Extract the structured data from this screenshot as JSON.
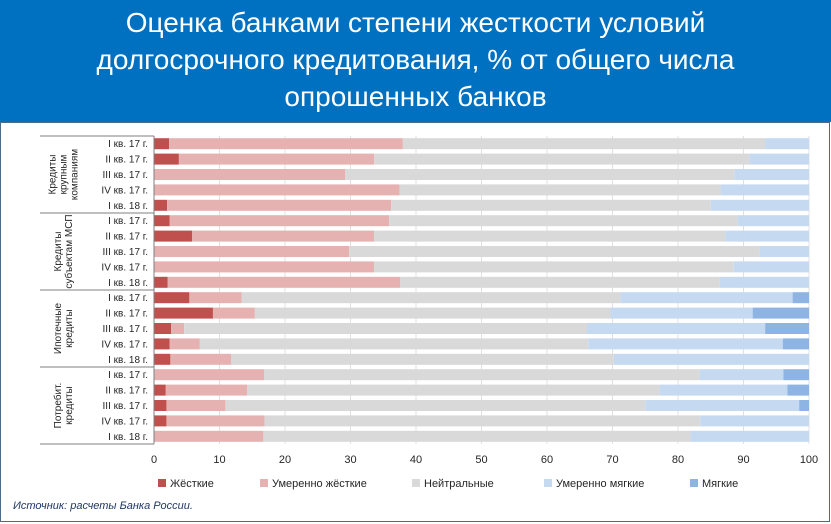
{
  "header": {
    "title_lines": [
      "Оценка банками степени жесткости условий",
      "долгосрочного кредитования, % от общего числа",
      "опрошенных банков"
    ]
  },
  "source": "Источник: расчеты Банка России.",
  "colors": {
    "header_bg": "#0070c0",
    "Жёсткие": "#c0504d",
    "Умеренно жёсткие": "#e6b1b1",
    "Нейтральные": "#d9d9d9",
    "Умеренно мягкие": "#c5d9f1",
    "Мягкие": "#8eb4e3"
  },
  "chart_data": {
    "type": "bar",
    "orientation": "horizontal",
    "stacked": true,
    "xlim": [
      0,
      100
    ],
    "x_ticks": [
      0,
      10,
      20,
      30,
      40,
      50,
      60,
      70,
      80,
      90,
      100
    ],
    "grid": true,
    "legend_position": "bottom",
    "groups": [
      {
        "label": "Кредиты крупным компаниям",
        "categories": [
          "I кв. 17 г.",
          "II кв. 17 г.",
          "III кв. 17 г.",
          "IV кв. 17 г.",
          "I кв. 18 г."
        ]
      },
      {
        "label": "Кредиты субъектам МСП",
        "categories": [
          "I кв. 17 г.",
          "II кв. 17 г.",
          "III кв. 17 г.",
          "IV кв. 17 г.",
          "I кв. 18 г."
        ]
      },
      {
        "label": "Ипотечные кредиты",
        "categories": [
          "I кв. 17 г.",
          "II кв. 17 г.",
          "III кв. 17 г.",
          "IV кв. 17 г.",
          "I кв. 18 г."
        ]
      },
      {
        "label": "Потребит. кредиты",
        "categories": [
          "I кв. 17 г.",
          "II кв. 17 г.",
          "III кв. 17 г.",
          "IV кв. 17 г.",
          "I кв. 18 г."
        ]
      }
    ],
    "series": [
      {
        "name": "Жёсткие",
        "values": [
          2.3,
          3.8,
          0,
          0,
          2.0,
          2.4,
          5.8,
          0,
          0,
          2.1,
          5.4,
          9.0,
          2.6,
          2.4,
          2.5,
          0,
          1.8,
          1.9,
          1.9,
          0
        ]
      },
      {
        "name": "Умеренно жёсткие",
        "values": [
          35.7,
          29.8,
          29.2,
          37.5,
          34.2,
          33.5,
          27.8,
          29.8,
          33.6,
          35.5,
          8.0,
          6.4,
          2.0,
          4.6,
          9.3,
          16.8,
          12.4,
          9.0,
          15.0,
          16.7
        ]
      },
      {
        "name": "Нейтральные",
        "values": [
          55.3,
          57.3,
          59.4,
          49.0,
          48.8,
          53.2,
          53.6,
          62.7,
          54.9,
          48.8,
          57.8,
          54.3,
          61.5,
          59.3,
          58.4,
          66.5,
          63.0,
          64.1,
          66.5,
          65.2
        ]
      },
      {
        "name": "Умеренно мягкие",
        "values": [
          6.7,
          9.1,
          11.4,
          13.5,
          15.0,
          10.9,
          12.8,
          7.5,
          11.5,
          13.6,
          26.3,
          21.7,
          27.2,
          29.7,
          29.8,
          12.8,
          19.5,
          23.5,
          16.6,
          18.1
        ]
      },
      {
        "name": "Мягкие",
        "values": [
          0,
          0,
          0,
          0,
          0,
          0,
          0,
          0,
          0,
          0,
          2.5,
          8.6,
          6.7,
          4.0,
          0,
          3.9,
          3.3,
          1.5,
          0,
          0
        ]
      }
    ]
  }
}
